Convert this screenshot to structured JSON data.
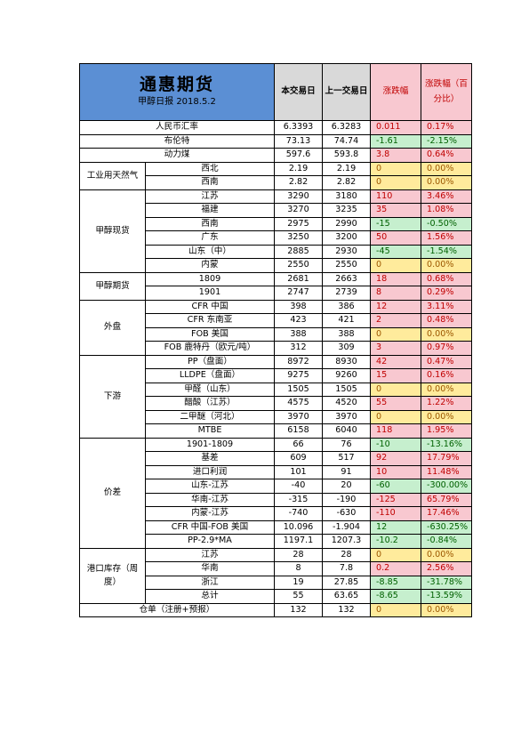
{
  "header": {
    "title": "通惠期货",
    "subtitle": "甲醇日报 2018.5.2",
    "col_today": "本交易日",
    "col_prev": "上一交易日",
    "col_change": "涨跌幅",
    "col_pct": "涨跌幅（百分比）"
  },
  "groups": [
    {
      "label": "",
      "rows": [
        {
          "item": "人民币汇率",
          "today": "6.3393",
          "prev": "6.3283",
          "change": "0.011",
          "pct": "0.17%",
          "dir": "up"
        },
        {
          "item": "布伦特",
          "today": "73.13",
          "prev": "74.74",
          "change": "-1.61",
          "pct": "-2.15%",
          "dir": "dn"
        },
        {
          "item": "动力煤",
          "today": "597.6",
          "prev": "593.8",
          "change": "3.8",
          "pct": "0.64%",
          "dir": "up"
        }
      ]
    },
    {
      "label": "工业用天然气",
      "rows": [
        {
          "item": "西北",
          "today": "2.19",
          "prev": "2.19",
          "change": "0",
          "pct": "0.00%",
          "dir": "fl"
        },
        {
          "item": "西南",
          "today": "2.82",
          "prev": "2.82",
          "change": "0",
          "pct": "0.00%",
          "dir": "fl"
        }
      ]
    },
    {
      "label": "甲醇现货",
      "rows": [
        {
          "item": "江苏",
          "today": "3290",
          "prev": "3180",
          "change": "110",
          "pct": "3.46%",
          "dir": "up"
        },
        {
          "item": "福建",
          "today": "3270",
          "prev": "3235",
          "change": "35",
          "pct": "1.08%",
          "dir": "up"
        },
        {
          "item": "西南",
          "today": "2975",
          "prev": "2990",
          "change": "-15",
          "pct": "-0.50%",
          "dir": "dn"
        },
        {
          "item": "广东",
          "today": "3250",
          "prev": "3200",
          "change": "50",
          "pct": "1.56%",
          "dir": "up"
        },
        {
          "item": "山东（中）",
          "today": "2885",
          "prev": "2930",
          "change": "-45",
          "pct": "-1.54%",
          "dir": "dn"
        },
        {
          "item": "内蒙",
          "today": "2550",
          "prev": "2550",
          "change": "0",
          "pct": "0.00%",
          "dir": "fl"
        }
      ]
    },
    {
      "label": "甲醇期货",
      "rows": [
        {
          "item": "1809",
          "today": "2681",
          "prev": "2663",
          "change": "18",
          "pct": "0.68%",
          "dir": "up"
        },
        {
          "item": "1901",
          "today": "2747",
          "prev": "2739",
          "change": "8",
          "pct": "0.29%",
          "dir": "up"
        }
      ]
    },
    {
      "label": "外盘",
      "rows": [
        {
          "item": "CFR 中国",
          "today": "398",
          "prev": "386",
          "change": "12",
          "pct": "3.11%",
          "dir": "up"
        },
        {
          "item": "CFR 东南亚",
          "today": "423",
          "prev": "421",
          "change": "2",
          "pct": "0.48%",
          "dir": "up"
        },
        {
          "item": "FOB 美国",
          "today": "388",
          "prev": "388",
          "change": "0",
          "pct": "0.00%",
          "dir": "fl"
        },
        {
          "item": "FOB 鹿特丹（欧元/吨）",
          "today": "312",
          "prev": "309",
          "change": "3",
          "pct": "0.97%",
          "dir": "up"
        }
      ]
    },
    {
      "label": "下游",
      "rows": [
        {
          "item": "PP（盘面）",
          "today": "8972",
          "prev": "8930",
          "change": "42",
          "pct": "0.47%",
          "dir": "up"
        },
        {
          "item": "LLDPE（盘面）",
          "today": "9275",
          "prev": "9260",
          "change": "15",
          "pct": "0.16%",
          "dir": "up"
        },
        {
          "item": "甲醛（山东）",
          "today": "1505",
          "prev": "1505",
          "change": "0",
          "pct": "0.00%",
          "dir": "fl"
        },
        {
          "item": "醋酸（江苏）",
          "today": "4575",
          "prev": "4520",
          "change": "55",
          "pct": "1.22%",
          "dir": "up"
        },
        {
          "item": "二甲醚（河北）",
          "today": "3970",
          "prev": "3970",
          "change": "0",
          "pct": "0.00%",
          "dir": "fl"
        },
        {
          "item": "MTBE",
          "today": "6158",
          "prev": "6040",
          "change": "118",
          "pct": "1.95%",
          "dir": "up"
        }
      ]
    },
    {
      "label": "价差",
      "rows": [
        {
          "item": "1901-1809",
          "today": "66",
          "prev": "76",
          "change": "-10",
          "pct": "-13.16%",
          "dir": "dn"
        },
        {
          "item": "基差",
          "today": "609",
          "prev": "517",
          "change": "92",
          "pct": "17.79%",
          "dir": "up"
        },
        {
          "item": "进口利润",
          "today": "101",
          "prev": "91",
          "change": "10",
          "pct": "11.48%",
          "dir": "up"
        },
        {
          "item": "山东-江苏",
          "today": "-40",
          "prev": "20",
          "change": "-60",
          "pct": "-300.00%",
          "dir": "dn"
        },
        {
          "item": "华南-江苏",
          "today": "-315",
          "prev": "-190",
          "change": "-125",
          "pct": "65.79%",
          "dir": "up"
        },
        {
          "item": "内蒙-江苏",
          "today": "-740",
          "prev": "-630",
          "change": "-110",
          "pct": "17.46%",
          "dir": "up"
        },
        {
          "item": "CFR 中国-FOB 美国",
          "today": "10.096",
          "prev": "-1.904",
          "change": "12",
          "pct": "-630.25%",
          "dir": "dn"
        },
        {
          "item": "PP-2.9*MA",
          "today": "1197.1",
          "prev": "1207.3",
          "change": "-10.2",
          "pct": "-0.84%",
          "dir": "dn"
        }
      ]
    },
    {
      "label": "港口库存（周度）",
      "rows": [
        {
          "item": "江苏",
          "today": "28",
          "prev": "28",
          "change": "0",
          "pct": "0.00%",
          "dir": "fl"
        },
        {
          "item": "华南",
          "today": "8",
          "prev": "7.8",
          "change": "0.2",
          "pct": "2.56%",
          "dir": "up"
        },
        {
          "item": "浙江",
          "today": "19",
          "prev": "27.85",
          "change": "-8.85",
          "pct": "-31.78%",
          "dir": "dn"
        },
        {
          "item": "总计",
          "today": "55",
          "prev": "63.65",
          "change": "-8.65",
          "pct": "-13.59%",
          "dir": "dn"
        }
      ]
    },
    {
      "label": "",
      "rows": [
        {
          "item": "仓单（注册+预报）",
          "today": "132",
          "prev": "132",
          "change": "0",
          "pct": "0.00%",
          "dir": "fl"
        }
      ]
    }
  ]
}
